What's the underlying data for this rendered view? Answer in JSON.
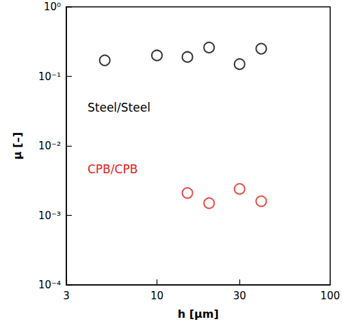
{
  "chart_data": {
    "type": "scatter",
    "x_label": "h [μm]",
    "y_label": "μ [–]",
    "log": true,
    "grid": false,
    "xlim": [
      3,
      100
    ],
    "xticks": [
      3,
      10,
      30,
      100
    ],
    "ylim": [
      0.0001,
      1
    ],
    "yticks": [
      {
        "value": 0.0001,
        "label": "10⁻⁴"
      },
      {
        "value": 0.001,
        "label": "10⁻³"
      },
      {
        "value": 0.01,
        "label": "10⁻²"
      },
      {
        "value": 0.1,
        "label": "10⁻¹"
      },
      {
        "value": 1,
        "label": "10⁰"
      }
    ],
    "series": [
      {
        "name": "Steel/Steel",
        "color": "#000000",
        "marker": "open circle",
        "x": [
          5,
          10,
          15,
          20,
          30,
          40
        ],
        "values": [
          0.17,
          0.2,
          0.19,
          0.26,
          0.15,
          0.25
        ]
      },
      {
        "name": "CPB/CPB",
        "color": "#e0201b",
        "marker": "open circle",
        "x": [
          15,
          20,
          30,
          40
        ],
        "values": [
          0.0021,
          0.0015,
          0.0024,
          0.0016
        ]
      }
    ]
  }
}
